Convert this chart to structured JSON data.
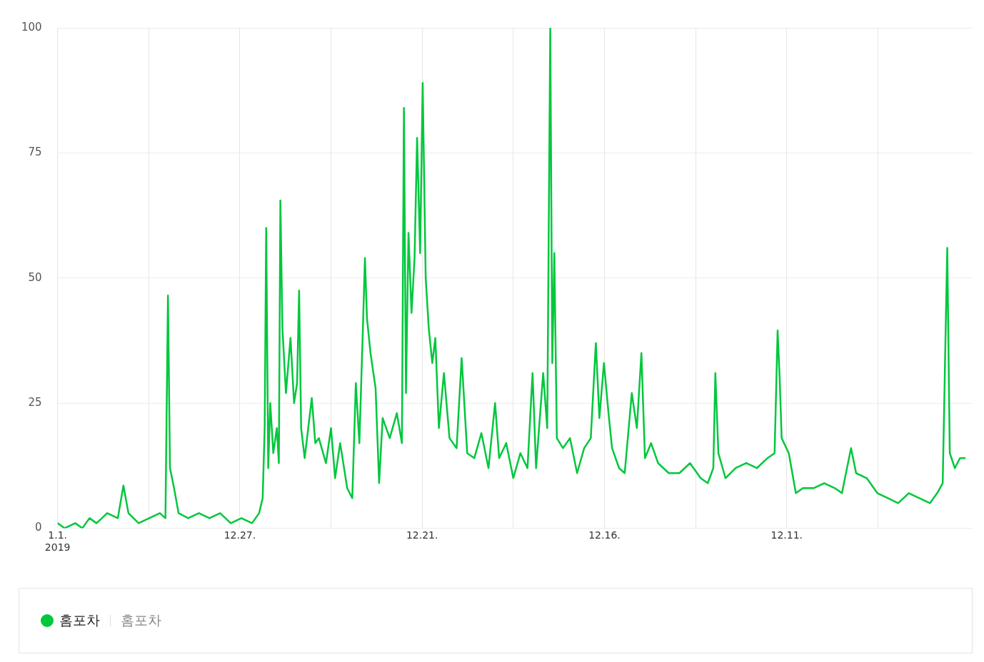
{
  "chart_data": {
    "type": "line",
    "legend": "bottom",
    "grid": true,
    "marker": "none",
    "line_style": "solid",
    "annotations": [
      "홈포차"
    ],
    "xlim": [
      "2019-01-01",
      "2023-12-13"
    ],
    "xticks": [
      {
        "value": "2019-01-01",
        "label": "1.1.\n2019"
      },
      {
        "value": "2019-06-30",
        "label": null
      },
      {
        "value": "2019-12-27",
        "label": "12.27."
      },
      {
        "value": "2020-06-24",
        "label": null
      },
      {
        "value": "2020-12-21",
        "label": "12.21."
      },
      {
        "value": "2021-06-19",
        "label": null
      },
      {
        "value": "2021-12-16",
        "label": "12.16."
      },
      {
        "value": "2022-06-14",
        "label": null
      },
      {
        "value": "2022-12-11",
        "label": "12.11."
      },
      {
        "value": "2023-06-09",
        "label": null
      }
    ],
    "ylim": [
      0,
      100
    ],
    "yticks": [
      0,
      25,
      50,
      75,
      100
    ],
    "x": [
      "2019-01-01",
      "2019-01-15",
      "2019-02-05",
      "2019-02-19",
      "2019-03-05",
      "2019-03-19",
      "2019-04-09",
      "2019-04-30",
      "2019-05-11",
      "2019-05-21",
      "2019-06-10",
      "2019-07-01",
      "2019-07-22",
      "2019-08-02",
      "2019-08-07",
      "2019-08-11",
      "2019-08-19",
      "2019-08-28",
      "2019-09-16",
      "2019-10-07",
      "2019-10-28",
      "2019-11-18",
      "2019-12-09",
      "2019-12-30",
      "2020-01-20",
      "2020-02-03",
      "2020-02-10",
      "2020-02-14",
      "2020-02-17",
      "2020-02-21",
      "2020-02-25",
      "2020-03-02",
      "2020-03-09",
      "2020-03-13",
      "2020-03-16",
      "2020-03-20",
      "2020-03-27",
      "2020-04-05",
      "2020-04-12",
      "2020-04-18",
      "2020-04-22",
      "2020-04-26",
      "2020-05-03",
      "2020-05-17",
      "2020-05-24",
      "2020-05-31",
      "2020-06-14",
      "2020-06-24",
      "2020-07-02",
      "2020-07-12",
      "2020-07-26",
      "2020-08-05",
      "2020-08-12",
      "2020-08-19",
      "2020-08-26",
      "2020-08-30",
      "2020-09-03",
      "2020-09-10",
      "2020-09-20",
      "2020-09-27",
      "2020-10-04",
      "2020-10-18",
      "2020-11-01",
      "2020-11-11",
      "2020-11-15",
      "2020-11-19",
      "2020-11-24",
      "2020-11-30",
      "2020-12-06",
      "2020-12-11",
      "2020-12-17",
      "2020-12-22",
      "2020-12-28",
      "2021-01-03",
      "2021-01-10",
      "2021-01-16",
      "2021-01-23",
      "2021-02-02",
      "2021-02-13",
      "2021-02-27",
      "2021-03-09",
      "2021-03-20",
      "2021-04-03",
      "2021-04-17",
      "2021-05-01",
      "2021-05-14",
      "2021-05-22",
      "2021-06-05",
      "2021-06-19",
      "2021-07-03",
      "2021-07-17",
      "2021-07-27",
      "2021-08-03",
      "2021-08-17",
      "2021-08-25",
      "2021-08-31",
      "2021-09-04",
      "2021-09-08",
      "2021-09-13",
      "2021-09-25",
      "2021-10-09",
      "2021-10-23",
      "2021-11-06",
      "2021-11-19",
      "2021-11-29",
      "2021-12-06",
      "2021-12-15",
      "2021-12-24",
      "2021-12-31",
      "2022-01-14",
      "2022-01-25",
      "2022-02-08",
      "2022-02-18",
      "2022-02-27",
      "2022-03-06",
      "2022-03-18",
      "2022-04-01",
      "2022-04-22",
      "2022-05-13",
      "2022-06-03",
      "2022-06-24",
      "2022-07-08",
      "2022-07-19",
      "2022-07-23",
      "2022-07-29",
      "2022-08-12",
      "2022-09-01",
      "2022-09-22",
      "2022-10-13",
      "2022-11-03",
      "2022-11-17",
      "2022-11-23",
      "2022-11-27",
      "2022-12-01",
      "2022-12-15",
      "2022-12-29",
      "2023-01-12",
      "2023-02-02",
      "2023-02-23",
      "2023-03-16",
      "2023-03-30",
      "2023-04-17",
      "2023-04-27",
      "2023-05-18",
      "2023-06-08",
      "2023-06-29",
      "2023-07-19",
      "2023-08-09",
      "2023-08-30",
      "2023-09-20",
      "2023-10-04",
      "2023-10-15",
      "2023-10-24",
      "2023-10-29",
      "2023-11-08",
      "2023-11-18",
      "2023-11-29"
    ],
    "series": [
      {
        "name": "홈포차",
        "color": "#00c73c",
        "values": [
          1,
          0,
          1,
          0,
          2,
          1,
          3,
          2,
          8.5,
          3,
          1,
          2,
          3,
          2,
          46.5,
          12,
          8,
          3,
          2,
          3,
          2,
          3,
          1,
          2,
          1,
          3,
          6,
          20,
          60,
          12,
          25,
          15,
          20,
          13,
          65.5,
          40,
          27,
          38,
          25,
          29,
          47.5,
          20,
          14,
          26,
          17,
          18,
          13,
          20,
          10,
          17,
          8,
          6,
          29,
          17,
          40,
          54,
          42,
          35,
          28,
          9,
          22,
          18,
          23,
          17,
          84,
          27,
          59,
          43,
          54,
          78,
          55,
          89,
          50,
          40,
          33,
          38,
          20,
          31,
          18,
          16,
          34,
          15,
          14,
          19,
          12,
          25,
          14,
          17,
          10,
          15,
          12,
          31,
          12,
          31,
          20,
          100,
          33,
          55,
          18,
          16,
          18,
          11,
          16,
          18,
          37,
          22,
          33,
          23,
          16,
          12,
          11,
          27,
          20,
          35,
          14,
          17,
          13,
          11,
          11,
          13,
          10,
          9,
          12,
          31,
          15,
          10,
          12,
          13,
          12,
          14,
          15,
          39.5,
          30,
          18,
          15,
          7,
          8,
          8,
          9,
          8,
          7,
          16,
          11,
          10,
          7,
          6,
          5,
          7,
          6,
          5,
          7,
          9,
          56,
          15,
          12,
          14,
          14
        ]
      }
    ]
  }
}
